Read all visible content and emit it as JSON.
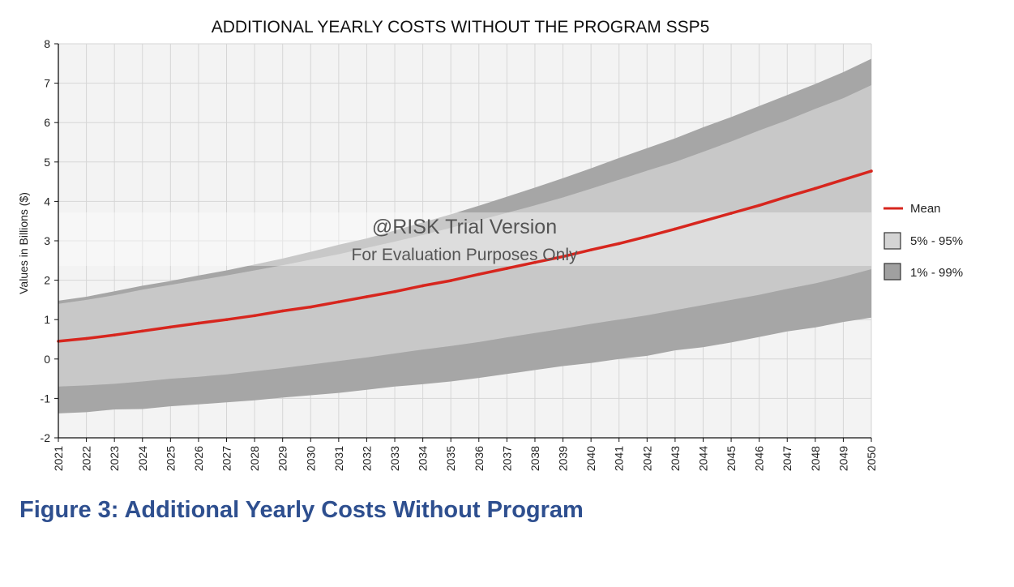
{
  "chart_data": {
    "type": "area",
    "title": "ADDITIONAL YEARLY COSTS WITHOUT THE PROGRAM SSP5",
    "xlabel": "",
    "ylabel": "Values in Billions ($)",
    "ylim": [
      -2,
      8
    ],
    "yticks": [
      -2,
      -1,
      0,
      1,
      2,
      3,
      4,
      5,
      6,
      7,
      8
    ],
    "x": [
      2021,
      2022,
      2023,
      2024,
      2025,
      2026,
      2027,
      2028,
      2029,
      2030,
      2031,
      2032,
      2033,
      2034,
      2035,
      2036,
      2037,
      2038,
      2039,
      2040,
      2041,
      2042,
      2043,
      2044,
      2045,
      2046,
      2047,
      2048,
      2049,
      2050
    ],
    "grid": true,
    "legend_position": "right",
    "series": [
      {
        "name": "Mean",
        "kind": "line",
        "color": "#d7261e",
        "values": [
          0.45,
          0.52,
          0.61,
          0.71,
          0.81,
          0.91,
          1.0,
          1.1,
          1.22,
          1.32,
          1.45,
          1.58,
          1.71,
          1.86,
          1.99,
          2.15,
          2.3,
          2.45,
          2.6,
          2.77,
          2.93,
          3.11,
          3.3,
          3.5,
          3.7,
          3.9,
          4.12,
          4.33,
          4.55,
          4.77
        ]
      },
      {
        "name": "5% - 95%",
        "kind": "band",
        "color": "#c8c8c8",
        "lower": [
          -0.7,
          -0.67,
          -0.63,
          -0.57,
          -0.5,
          -0.45,
          -0.39,
          -0.31,
          -0.23,
          -0.14,
          -0.05,
          0.04,
          0.14,
          0.24,
          0.33,
          0.43,
          0.55,
          0.66,
          0.77,
          0.89,
          1.0,
          1.11,
          1.24,
          1.37,
          1.5,
          1.63,
          1.78,
          1.92,
          2.09,
          2.28
        ],
        "upper": [
          1.4,
          1.5,
          1.62,
          1.76,
          1.88,
          2.0,
          2.12,
          2.25,
          2.38,
          2.52,
          2.66,
          2.82,
          2.98,
          3.15,
          3.33,
          3.52,
          3.71,
          3.9,
          4.1,
          4.32,
          4.55,
          4.78,
          5.0,
          5.26,
          5.52,
          5.8,
          6.06,
          6.35,
          6.62,
          6.95
        ]
      },
      {
        "name": "1% - 99%",
        "kind": "band",
        "color": "#a6a6a6",
        "lower": [
          -1.38,
          -1.35,
          -1.28,
          -1.27,
          -1.2,
          -1.15,
          -1.1,
          -1.05,
          -0.98,
          -0.92,
          -0.86,
          -0.78,
          -0.7,
          -0.64,
          -0.57,
          -0.48,
          -0.38,
          -0.28,
          -0.18,
          -0.1,
          0.0,
          0.08,
          0.22,
          0.3,
          0.42,
          0.56,
          0.7,
          0.8,
          0.94,
          1.05
        ],
        "upper": [
          1.48,
          1.58,
          1.72,
          1.86,
          1.98,
          2.12,
          2.25,
          2.4,
          2.55,
          2.72,
          2.9,
          3.06,
          3.26,
          3.47,
          3.67,
          3.89,
          4.12,
          4.35,
          4.59,
          4.84,
          5.1,
          5.35,
          5.6,
          5.88,
          6.14,
          6.42,
          6.7,
          6.98,
          7.28,
          7.62
        ]
      }
    ],
    "legend": [
      {
        "label": "Mean",
        "swatch": "line"
      },
      {
        "label": "5% - 95%",
        "swatch": "box-light"
      },
      {
        "label": "1% - 99%",
        "swatch": "box-dark"
      }
    ],
    "watermark": {
      "line1": "@RISK Trial Version",
      "line2": "For Evaluation Purposes Only"
    }
  },
  "caption": "Figure 3: Additional Yearly Costs Without Program"
}
